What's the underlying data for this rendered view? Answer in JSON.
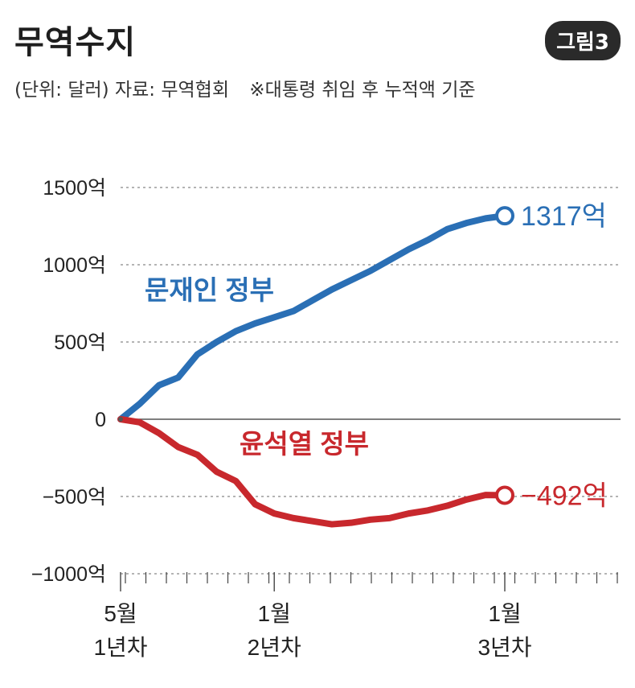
{
  "header": {
    "title": "무역수지",
    "badge": "그림3",
    "source_note": "(단위: 달러) 자료: 무역협회",
    "footnote": "※대통령 취임 후 누적액 기준"
  },
  "chart_data": {
    "type": "line",
    "title": "무역수지",
    "ylabel": "",
    "xlabel": "",
    "ylim": [
      -1000,
      1500
    ],
    "xlim": [
      0,
      24
    ],
    "grid": true,
    "y_ticks": [
      {
        "value": 1500,
        "label": "1500억"
      },
      {
        "value": 1000,
        "label": "1000억"
      },
      {
        "value": 500,
        "label": "500억"
      },
      {
        "value": 0,
        "label": "0"
      },
      {
        "value": -500,
        "label": "−500억"
      },
      {
        "value": -1000,
        "label": "−1000억"
      }
    ],
    "x_ticks": [
      {
        "value": 0,
        "label": [
          "5월",
          "1년차"
        ]
      },
      {
        "value": 8,
        "label": [
          "1월",
          "2년차"
        ]
      },
      {
        "value": 20,
        "label": [
          "1월",
          "3년차"
        ]
      }
    ],
    "minor_tick_count": 24,
    "series": [
      {
        "name": "문재인 정부",
        "color": "#2a6fb5",
        "x": [
          0,
          1,
          2,
          3,
          4,
          5,
          6,
          7,
          8,
          9,
          10,
          11,
          12,
          13,
          14,
          15,
          16,
          17,
          18,
          19,
          20
        ],
        "values": [
          0,
          100,
          220,
          270,
          420,
          500,
          570,
          620,
          660,
          700,
          770,
          840,
          900,
          960,
          1030,
          1100,
          1160,
          1230,
          1270,
          1300,
          1317
        ],
        "end_label": "1317억"
      },
      {
        "name": "윤석열 정부",
        "color": "#c8282d",
        "x": [
          0,
          1,
          2,
          3,
          4,
          5,
          6,
          7,
          8,
          9,
          10,
          11,
          12,
          13,
          14,
          15,
          16,
          17,
          18,
          19,
          20
        ],
        "values": [
          0,
          -20,
          -90,
          -180,
          -230,
          -340,
          -400,
          -550,
          -610,
          -640,
          -660,
          -680,
          -670,
          -650,
          -640,
          -610,
          -590,
          -560,
          -520,
          -490,
          -492
        ],
        "end_label": "−492억"
      }
    ]
  }
}
